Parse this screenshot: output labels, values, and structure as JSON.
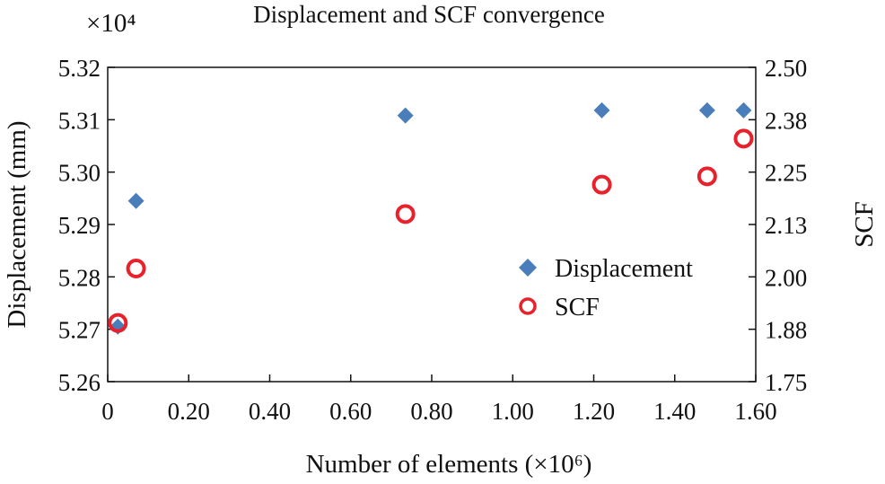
{
  "chart_data": {
    "type": "scatter",
    "title": "Displacement and SCF convergence",
    "xlabel": "Number of elements (×10⁶)",
    "ylabel_left": "Displacement (mm)",
    "ylabel_right": "SCF",
    "left_axis_multiplier": "×10⁴",
    "xlim": [
      0,
      1.6
    ],
    "ylim_left": [
      5.26,
      5.32
    ],
    "ylim_right": [
      1.75,
      2.5
    ],
    "x_ticks": [
      "0",
      "0.20",
      "0.40",
      "0.60",
      "0.80",
      "1.00",
      "1.20",
      "1.40",
      "1.60"
    ],
    "x_tick_values": [
      0,
      0.2,
      0.4,
      0.6,
      0.8,
      1.0,
      1.2,
      1.4,
      1.6
    ],
    "y_left_ticks": [
      "5.26",
      "5.27",
      "5.28",
      "5.29",
      "5.30",
      "5.31",
      "5.32"
    ],
    "y_left_tick_values": [
      5.26,
      5.27,
      5.28,
      5.29,
      5.3,
      5.31,
      5.32
    ],
    "y_right_ticks": [
      "1.75",
      "1.88",
      "2.00",
      "2.13",
      "2.25",
      "2.38",
      "2.50"
    ],
    "y_right_tick_values": [
      1.75,
      1.875,
      2.0,
      2.125,
      2.25,
      2.375,
      2.5
    ],
    "grid": false,
    "legend_position": "right-middle",
    "series": [
      {
        "name": "Displacement",
        "axis": "left",
        "marker": "diamond",
        "color": "#4a7ebb",
        "x": [
          0.025,
          0.07,
          0.735,
          1.22,
          1.48,
          1.57
        ],
        "y": [
          5.2705,
          5.2945,
          5.3108,
          5.3118,
          5.3118,
          5.3118
        ]
      },
      {
        "name": "SCF",
        "axis": "right",
        "marker": "circle-open",
        "color": "#e8212b",
        "x": [
          0.025,
          0.07,
          0.735,
          1.22,
          1.48,
          1.57
        ],
        "y": [
          1.89,
          2.02,
          2.15,
          2.22,
          2.24,
          2.33
        ]
      }
    ]
  }
}
